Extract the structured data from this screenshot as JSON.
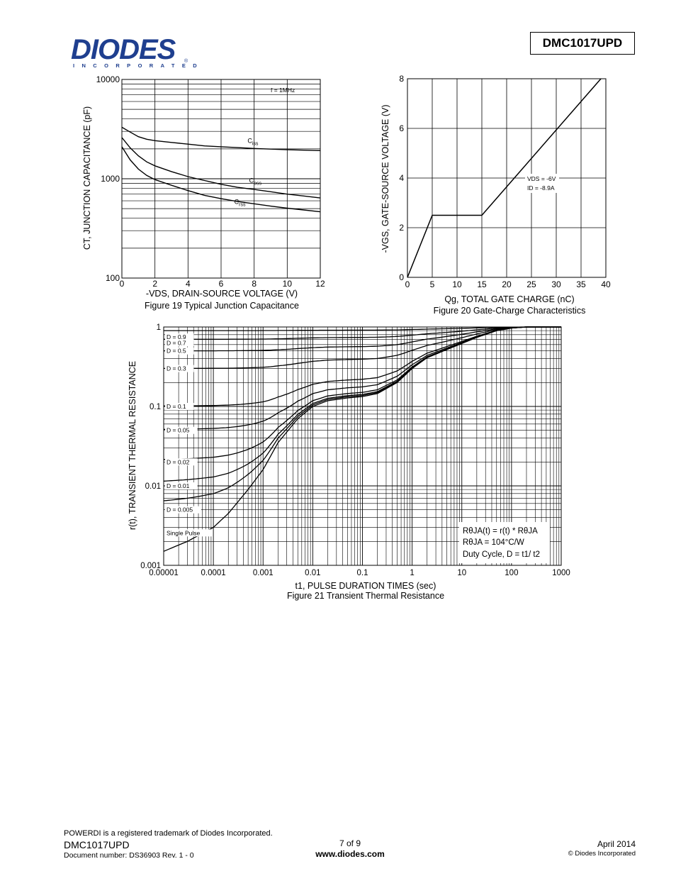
{
  "header": {
    "logo_text": "DIODES",
    "logo_subtext": "INCORPORATED",
    "logo_reg": "®",
    "part_number": "DMC1017UPD"
  },
  "footer": {
    "trademark": "POWERDI is a registered trademark of Diodes Incorporated.",
    "part": "DMC1017UPD",
    "docnum": "Document number: DS36903 Rev. 1 - 0",
    "page": "7 of 9",
    "url": "www.diodes.com",
    "date": "April 2014",
    "copyright": "© Diodes Incorporated"
  },
  "chart_data": [
    {
      "type": "line",
      "title": "Figure 19 Typical Junction Capacitance",
      "xlabel": "-VDS, DRAIN-SOURCE VOLTAGE (V)",
      "ylabel": "CT, JUNCTION CAPACITANCE (pF)",
      "xscale": "linear",
      "yscale": "log",
      "xlim": [
        0,
        12
      ],
      "ylim": [
        100,
        10000
      ],
      "xticks": [
        0,
        2,
        4,
        6,
        8,
        10,
        12
      ],
      "yticks": [
        100,
        1000,
        10000
      ],
      "xtick_labels": [
        "0",
        "2",
        "4",
        "6",
        "8",
        "10",
        "12"
      ],
      "ytick_labels": [
        "100",
        "1000",
        "10000"
      ],
      "annotation": "f = 1MHz",
      "series": [
        {
          "name": "Ciss",
          "x": [
            0,
            0.5,
            1,
            1.5,
            2,
            3,
            4,
            5,
            6,
            7,
            8,
            9,
            10,
            11,
            12
          ],
          "y": [
            3300,
            2950,
            2650,
            2500,
            2420,
            2320,
            2230,
            2140,
            2100,
            2060,
            2020,
            1990,
            1960,
            1940,
            1920
          ]
        },
        {
          "name": "Coss",
          "x": [
            0,
            0.5,
            1,
            1.5,
            2,
            3,
            4,
            5,
            6,
            7,
            8,
            9,
            10,
            11,
            12
          ],
          "y": [
            2600,
            2050,
            1700,
            1480,
            1350,
            1180,
            1050,
            960,
            880,
            820,
            780,
            740,
            700,
            670,
            640
          ]
        },
        {
          "name": "Crss",
          "x": [
            0,
            0.5,
            1,
            1.5,
            2,
            3,
            4,
            5,
            6,
            7,
            8,
            9,
            10,
            11,
            12
          ],
          "y": [
            2100,
            1550,
            1250,
            1080,
            980,
            860,
            760,
            680,
            630,
            590,
            560,
            530,
            505,
            485,
            465
          ]
        }
      ]
    },
    {
      "type": "line",
      "title": "Figure 20 Gate-Charge Characteristics",
      "xlabel": "Qg, TOTAL GATE CHARGE (nC)",
      "ylabel": "-VGS, GATE-SOURCE VOLTAGE (V)",
      "xlim": [
        0,
        40
      ],
      "ylim": [
        0,
        8
      ],
      "xticks": [
        0,
        5,
        10,
        15,
        20,
        25,
        30,
        35,
        40
      ],
      "yticks": [
        0,
        2,
        4,
        6,
        8
      ],
      "xtick_labels": [
        "0",
        "5",
        "10",
        "15",
        "20",
        "25",
        "30",
        "35",
        "40"
      ],
      "ytick_labels": [
        "0",
        "2",
        "4",
        "6",
        "8"
      ],
      "annotation_vds": "VDS = -6V",
      "annotation_id": "ID = -8.9A",
      "series": [
        {
          "name": "VGS",
          "x": [
            0,
            5,
            15,
            39
          ],
          "y": [
            0,
            2.5,
            2.5,
            8
          ]
        }
      ]
    },
    {
      "type": "line",
      "title": "Figure 21  Transient Thermal Resistance",
      "xlabel": "t1, PULSE DURATION TIMES (sec)",
      "ylabel": "r(t), TRANSIENT THERMAL RESISTANCE",
      "xscale": "log",
      "yscale": "log",
      "xlim": [
        1e-05,
        1000
      ],
      "ylim": [
        0.001,
        1
      ],
      "xticks": [
        1e-05,
        0.0001,
        0.001,
        0.01,
        0.1,
        1,
        10,
        100,
        1000
      ],
      "yticks": [
        0.001,
        0.01,
        0.1,
        1
      ],
      "xtick_labels": [
        "0.00001",
        "0.0001",
        "0.001",
        "0.01",
        "0.1",
        "1",
        "10",
        "100",
        "1000"
      ],
      "ytick_labels": [
        "0.001",
        "0.01",
        "0.1",
        "1"
      ],
      "legend_lines": [
        "RθJA(t) = r(t) * RθJA",
        "RθJA = 104°C/W",
        "Duty Cycle, D = t1/ t2"
      ],
      "single_pulse": {
        "x": [
          1e-05,
          3e-05,
          0.0001,
          0.0002,
          0.0005,
          0.001,
          0.002,
          0.005,
          0.01,
          0.02,
          0.05,
          0.1,
          0.2,
          0.5,
          1,
          2,
          5,
          10,
          20,
          50,
          100,
          200,
          1000
        ],
        "y": [
          0.0015,
          0.002,
          0.003,
          0.0045,
          0.009,
          0.016,
          0.035,
          0.07,
          0.1,
          0.118,
          0.128,
          0.133,
          0.145,
          0.2,
          0.3,
          0.41,
          0.52,
          0.62,
          0.74,
          0.9,
          0.97,
          1.0,
          1.0
        ]
      },
      "duty_labels": [
        "D = 0.9",
        "D = 0.7",
        "D = 0.5",
        "D = 0.3",
        "D = 0.1",
        "D = 0.05",
        "D = 0.02",
        "D = 0.01",
        "D = 0.005",
        "Single Pulse"
      ],
      "duty_cycles": [
        0.9,
        0.7,
        0.5,
        0.3,
        0.1,
        0.05,
        0.02,
        0.01,
        0.005
      ]
    }
  ]
}
